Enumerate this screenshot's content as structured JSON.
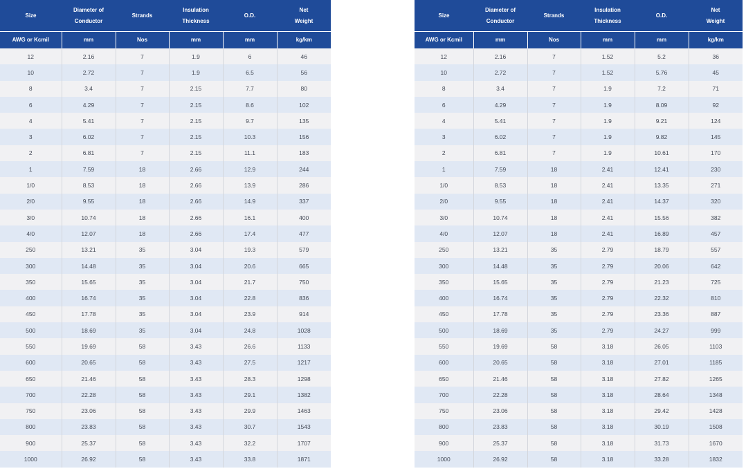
{
  "header": {
    "size": "Size",
    "diameter": [
      "Diameter of",
      "Conductor"
    ],
    "strands": "Strands",
    "insulation": [
      "Insulation",
      "Thickness"
    ],
    "od": "O.D.",
    "weight": [
      "Net",
      "Weight"
    ]
  },
  "units": [
    "AWG or Kcmil",
    "mm",
    "Nos",
    "mm",
    "mm",
    "kg/km"
  ],
  "tables": [
    {
      "rows": [
        [
          "12",
          "2.16",
          "7",
          "1.9",
          "6",
          "46"
        ],
        [
          "10",
          "2.72",
          "7",
          "1.9",
          "6.5",
          "56"
        ],
        [
          "8",
          "3.4",
          "7",
          "2.15",
          "7.7",
          "80"
        ],
        [
          "6",
          "4.29",
          "7",
          "2.15",
          "8.6",
          "102"
        ],
        [
          "4",
          "5.41",
          "7",
          "2.15",
          "9.7",
          "135"
        ],
        [
          "3",
          "6.02",
          "7",
          "2.15",
          "10.3",
          "156"
        ],
        [
          "2",
          "6.81",
          "7",
          "2.15",
          "11.1",
          "183"
        ],
        [
          "1",
          "7.59",
          "18",
          "2.66",
          "12.9",
          "244"
        ],
        [
          "1/0",
          "8.53",
          "18",
          "2.66",
          "13.9",
          "286"
        ],
        [
          "2/0",
          "9.55",
          "18",
          "2.66",
          "14.9",
          "337"
        ],
        [
          "3/0",
          "10.74",
          "18",
          "2.66",
          "16.1",
          "400"
        ],
        [
          "4/0",
          "12.07",
          "18",
          "2.66",
          "17.4",
          "477"
        ],
        [
          "250",
          "13.21",
          "35",
          "3.04",
          "19.3",
          "579"
        ],
        [
          "300",
          "14.48",
          "35",
          "3.04",
          "20.6",
          "665"
        ],
        [
          "350",
          "15.65",
          "35",
          "3.04",
          "21.7",
          "750"
        ],
        [
          "400",
          "16.74",
          "35",
          "3.04",
          "22.8",
          "836"
        ],
        [
          "450",
          "17.78",
          "35",
          "3.04",
          "23.9",
          "914"
        ],
        [
          "500",
          "18.69",
          "35",
          "3.04",
          "24.8",
          "1028"
        ],
        [
          "550",
          "19.69",
          "58",
          "3.43",
          "26.6",
          "1133"
        ],
        [
          "600",
          "20.65",
          "58",
          "3.43",
          "27.5",
          "1217"
        ],
        [
          "650",
          "21.46",
          "58",
          "3.43",
          "28.3",
          "1298"
        ],
        [
          "700",
          "22.28",
          "58",
          "3.43",
          "29.1",
          "1382"
        ],
        [
          "750",
          "23.06",
          "58",
          "3.43",
          "29.9",
          "1463"
        ],
        [
          "800",
          "23.83",
          "58",
          "3.43",
          "30.7",
          "1543"
        ],
        [
          "900",
          "25.37",
          "58",
          "3.43",
          "32.2",
          "1707"
        ],
        [
          "1000",
          "26.92",
          "58",
          "3.43",
          "33.8",
          "1871"
        ]
      ]
    },
    {
      "rows": [
        [
          "12",
          "2.16",
          "7",
          "1.52",
          "5.2",
          "36"
        ],
        [
          "10",
          "2.72",
          "7",
          "1.52",
          "5.76",
          "45"
        ],
        [
          "8",
          "3.4",
          "7",
          "1.9",
          "7.2",
          "71"
        ],
        [
          "6",
          "4.29",
          "7",
          "1.9",
          "8.09",
          "92"
        ],
        [
          "4",
          "5.41",
          "7",
          "1.9",
          "9.21",
          "124"
        ],
        [
          "3",
          "6.02",
          "7",
          "1.9",
          "9.82",
          "145"
        ],
        [
          "2",
          "6.81",
          "7",
          "1.9",
          "10.61",
          "170"
        ],
        [
          "1",
          "7.59",
          "18",
          "2.41",
          "12.41",
          "230"
        ],
        [
          "1/0",
          "8.53",
          "18",
          "2.41",
          "13.35",
          "271"
        ],
        [
          "2/0",
          "9.55",
          "18",
          "2.41",
          "14.37",
          "320"
        ],
        [
          "3/0",
          "10.74",
          "18",
          "2.41",
          "15.56",
          "382"
        ],
        [
          "4/0",
          "12.07",
          "18",
          "2.41",
          "16.89",
          "457"
        ],
        [
          "250",
          "13.21",
          "35",
          "2.79",
          "18.79",
          "557"
        ],
        [
          "300",
          "14.48",
          "35",
          "2.79",
          "20.06",
          "642"
        ],
        [
          "350",
          "15.65",
          "35",
          "2.79",
          "21.23",
          "725"
        ],
        [
          "400",
          "16.74",
          "35",
          "2.79",
          "22.32",
          "810"
        ],
        [
          "450",
          "17.78",
          "35",
          "2.79",
          "23.36",
          "887"
        ],
        [
          "500",
          "18.69",
          "35",
          "2.79",
          "24.27",
          "999"
        ],
        [
          "550",
          "19.69",
          "58",
          "3.18",
          "26.05",
          "1103"
        ],
        [
          "600",
          "20.65",
          "58",
          "3.18",
          "27.01",
          "1185"
        ],
        [
          "650",
          "21.46",
          "58",
          "3.18",
          "27.82",
          "1265"
        ],
        [
          "700",
          "22.28",
          "58",
          "3.18",
          "28.64",
          "1348"
        ],
        [
          "750",
          "23.06",
          "58",
          "3.18",
          "29.42",
          "1428"
        ],
        [
          "800",
          "23.83",
          "58",
          "3.18",
          "30.19",
          "1508"
        ],
        [
          "900",
          "25.37",
          "58",
          "3.18",
          "31.73",
          "1670"
        ],
        [
          "1000",
          "26.92",
          "58",
          "3.18",
          "33.28",
          "1832"
        ]
      ]
    }
  ]
}
